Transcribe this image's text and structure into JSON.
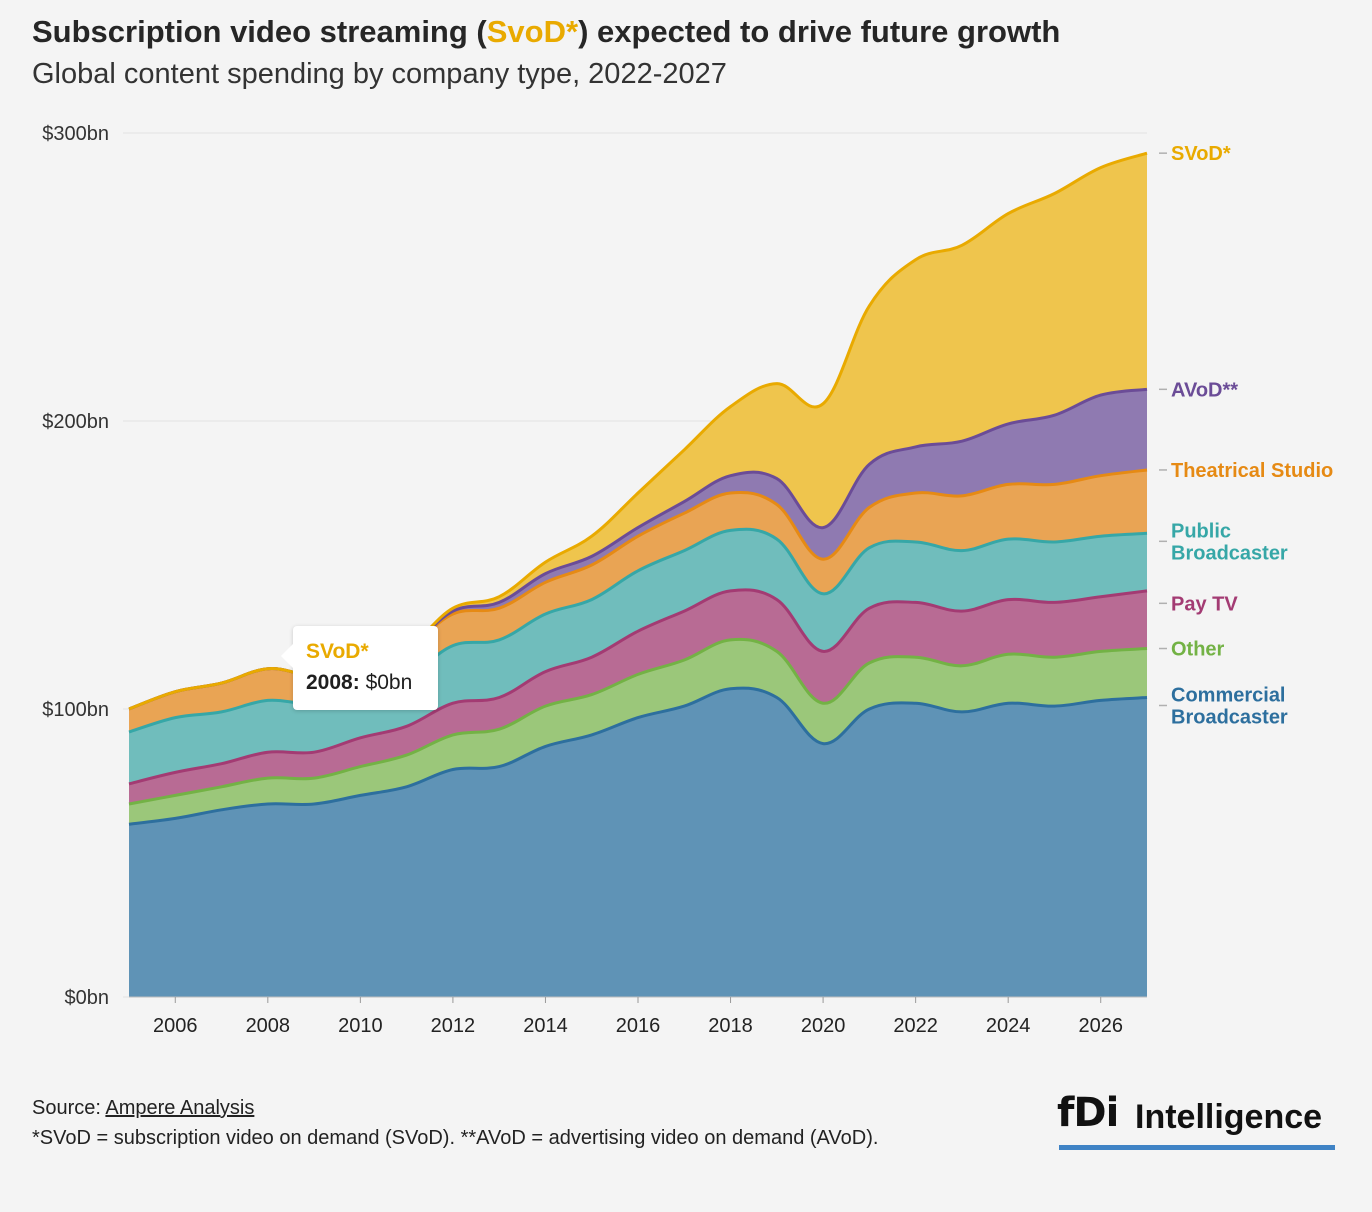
{
  "header": {
    "title_prefix": "Subscription video streaming (",
    "title_highlight": "SvoD*",
    "title_suffix": ") expected to drive future growth",
    "subtitle": "Global content spending by company type, 2022-2027"
  },
  "tooltip": {
    "series": "SVoD*",
    "year": "2008:",
    "value": "$0bn"
  },
  "source": {
    "prefix": "Source: ",
    "link": "Ampere Analysis",
    "footnote": "*SVoD = subscription video on demand (SVoD). **AVoD = advertising video on demand (AVoD)."
  },
  "logo": {
    "brand": "fDi",
    "word": "Intelligence",
    "bar_color": "#3f83c5"
  },
  "chart_data": {
    "type": "area",
    "stacked": true,
    "x": [
      2005,
      2006,
      2007,
      2008,
      2009,
      2010,
      2011,
      2012,
      2013,
      2014,
      2015,
      2016,
      2017,
      2018,
      2019,
      2020,
      2021,
      2022,
      2023,
      2024,
      2025,
      2026,
      2027
    ],
    "xlim": [
      2005,
      2027
    ],
    "xticks": [
      2006,
      2008,
      2010,
      2012,
      2014,
      2016,
      2018,
      2020,
      2022,
      2024,
      2026
    ],
    "ylim": [
      0,
      300
    ],
    "yticks": [
      {
        "value": 0,
        "label": "$0bn"
      },
      {
        "value": 100,
        "label": "$100bn"
      },
      {
        "value": 200,
        "label": "$200bn"
      },
      {
        "value": 300,
        "label": "$300bn"
      }
    ],
    "grid": true,
    "series": [
      {
        "name": "Commercial Broadcaster",
        "label_lines": [
          "Commercial",
          "Broadcaster"
        ],
        "color": "#2d6f9e",
        "fill": "#5f93b6",
        "values": [
          60,
          62,
          65,
          67,
          67,
          70,
          73,
          79,
          80,
          87,
          91,
          97,
          101,
          107,
          104,
          88,
          100,
          102,
          99,
          102,
          101,
          103,
          104
        ]
      },
      {
        "name": "Other",
        "label_lines": [
          "Other"
        ],
        "color": "#73b245",
        "fill": "#9bc77a",
        "values": [
          7,
          8,
          8,
          9,
          9,
          10,
          11,
          12,
          13,
          14,
          14,
          15,
          16,
          17,
          16,
          14,
          16,
          16,
          16,
          17,
          17,
          17,
          17
        ]
      },
      {
        "name": "Pay TV",
        "label_lines": [
          "Pay TV"
        ],
        "color": "#a33b73",
        "fill": "#b86b94",
        "values": [
          7,
          8,
          8,
          9,
          9,
          10,
          10,
          11,
          11,
          12,
          13,
          15,
          17,
          17,
          18,
          18,
          19,
          19,
          19,
          19,
          19,
          19,
          20
        ]
      },
      {
        "name": "Public Broadcaster",
        "label_lines": [
          "Public",
          "Broadcaster"
        ],
        "color": "#36a7a7",
        "fill": "#70bdbc",
        "values": [
          18,
          19,
          18,
          18,
          17,
          17,
          17,
          20,
          20,
          20,
          20,
          21,
          21,
          21,
          21,
          20,
          21,
          21,
          21,
          21,
          21,
          21,
          20
        ]
      },
      {
        "name": "Theatrical Studio",
        "label_lines": [
          "Theatrical Studio"
        ],
        "color": "#e68a14",
        "fill": "#e9a454",
        "values": [
          8,
          9,
          10,
          11,
          10,
          10,
          10,
          11,
          11,
          11,
          12,
          12,
          13,
          13,
          12,
          12,
          14,
          17,
          19,
          19,
          20,
          21,
          22
        ]
      },
      {
        "name": "AVoD**",
        "label_lines": [
          "AVoD**"
        ],
        "color": "#6b4c97",
        "fill": "#8f7ab1",
        "values": [
          0,
          0,
          0,
          0,
          0,
          0,
          0,
          1,
          2,
          3,
          3,
          3,
          4,
          6,
          9,
          11,
          15,
          16,
          19,
          21,
          24,
          28,
          28
        ]
      },
      {
        "name": "SVoD*",
        "label_lines": [
          "SVoD*"
        ],
        "color": "#e9aa00",
        "fill": "#efc54d",
        "values": [
          0,
          0,
          0,
          0,
          0,
          0,
          0,
          1,
          2,
          4,
          7,
          12,
          18,
          24,
          33,
          43,
          55,
          65,
          68,
          73,
          77,
          79,
          82
        ]
      }
    ]
  }
}
